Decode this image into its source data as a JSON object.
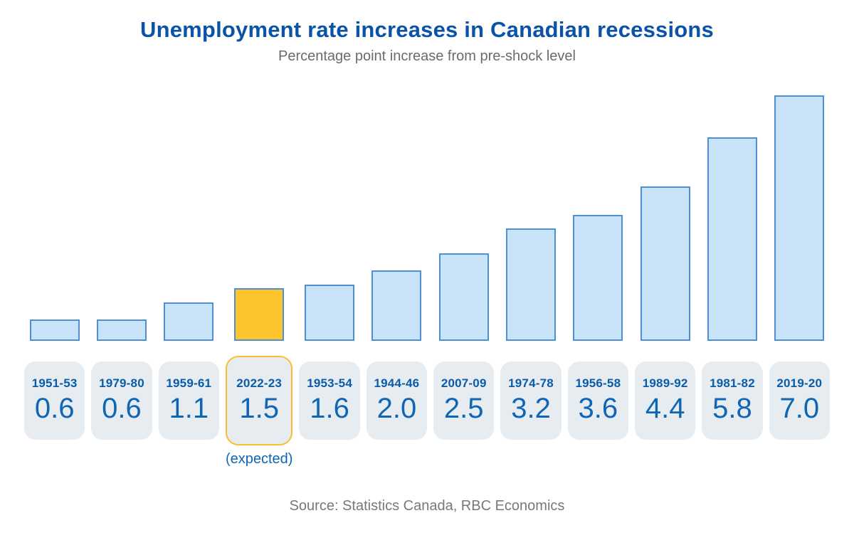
{
  "header": {
    "title": "Unemployment rate increases in Canadian recessions",
    "subtitle": "Percentage point increase from pre-shock level"
  },
  "footer": {
    "source": "Source: Statistics Canada, RBC Economics"
  },
  "chart_data": {
    "type": "bar",
    "title": "Unemployment rate increases in Canadian recessions",
    "subtitle": "Percentage point increase from pre-shock level",
    "xlabel": "",
    "ylabel": "Percentage point increase",
    "ylim": [
      0,
      7.0
    ],
    "grid": false,
    "categories": [
      "1951-53",
      "1979-80",
      "1959-61",
      "2022-23",
      "1953-54",
      "1944-46",
      "2007-09",
      "1974-78",
      "1956-58",
      "1989-92",
      "1981-82",
      "2019-20"
    ],
    "values": [
      0.6,
      0.6,
      1.1,
      1.5,
      1.6,
      2.0,
      2.5,
      3.2,
      3.6,
      4.4,
      5.8,
      7.0
    ],
    "value_labels": [
      "0.6",
      "0.6",
      "1.1",
      "1.5",
      "1.6",
      "2.0",
      "2.5",
      "3.2",
      "3.6",
      "4.4",
      "5.8",
      "7.0"
    ],
    "highlight_index": 3,
    "annotation": {
      "index": 3,
      "text": "(expected)"
    },
    "source": "Source: Statistics Canada, RBC Economics",
    "colors": {
      "title": "#0B53A9",
      "subtitle": "#6A6B6E",
      "source": "#77787B",
      "bar_fill": "#C8E2F8",
      "bar_border": "#4E90D2",
      "highlight_fill": "#FDC42D",
      "highlight_box_border": "#F9BE2C",
      "box_bg": "#E6ECF0",
      "year_text": "#0B5CA8",
      "value_text": "#0E66B4"
    }
  }
}
